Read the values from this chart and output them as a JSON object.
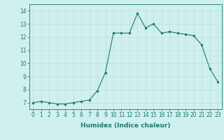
{
  "x": [
    0,
    1,
    2,
    3,
    4,
    5,
    6,
    7,
    8,
    9,
    10,
    11,
    12,
    13,
    14,
    15,
    16,
    17,
    18,
    19,
    20,
    21,
    22,
    23
  ],
  "y": [
    7.0,
    7.1,
    7.0,
    6.9,
    6.9,
    7.0,
    7.1,
    7.2,
    7.9,
    9.3,
    12.3,
    12.3,
    12.3,
    13.8,
    12.7,
    13.0,
    12.3,
    12.4,
    12.3,
    12.2,
    12.1,
    11.4,
    9.6,
    8.6
  ],
  "xlabel": "Humidex (Indice chaleur)",
  "ylim": [
    6.5,
    14.5
  ],
  "xlim": [
    -0.5,
    23.5
  ],
  "yticks": [
    7,
    8,
    9,
    10,
    11,
    12,
    13,
    14
  ],
  "xticks": [
    0,
    1,
    2,
    3,
    4,
    5,
    6,
    7,
    8,
    9,
    10,
    11,
    12,
    13,
    14,
    15,
    16,
    17,
    18,
    19,
    20,
    21,
    22,
    23
  ],
  "line_color": "#1a7a6e",
  "marker_color": "#1a7a6e",
  "bg_color": "#cff0ee",
  "grid_color": "#b8e0dc",
  "fig_bg": "#cff0ee",
  "tick_fontsize": 5.5,
  "xlabel_fontsize": 6.5
}
